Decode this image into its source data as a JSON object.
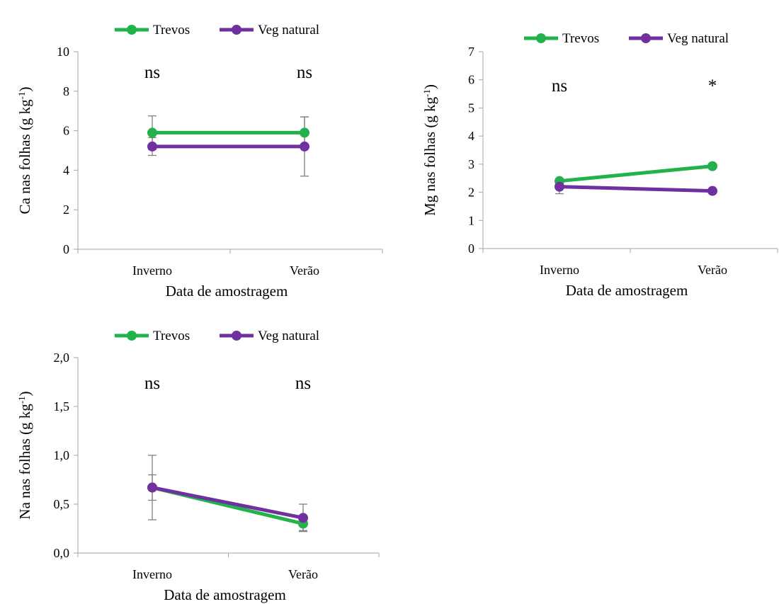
{
  "colors": {
    "trevos": "#21b24b",
    "veg": "#7030a0",
    "error": "#808080",
    "axis": "#a6a6a6"
  },
  "chart_data": [
    {
      "type": "line",
      "categories": [
        "Inverno",
        "Verão"
      ],
      "xlabel": "Data de amostragem",
      "ylabel": "Ca nas folhas (g kg",
      "ylabel_sup": "-1",
      "ylabel_close": ")",
      "ylim": [
        0,
        10
      ],
      "yticks": [
        "0",
        "2",
        "4",
        "6",
        "8",
        "10"
      ],
      "yticks_values": [
        0,
        2,
        4,
        6,
        8,
        10
      ],
      "legend_placement": "top",
      "series": [
        {
          "name": "Trevos",
          "values": [
            5.9,
            5.9
          ],
          "error": [
            0.85,
            0.8
          ]
        },
        {
          "name": "Veg natural",
          "values": [
            5.2,
            5.2
          ],
          "error": [
            0.45,
            1.5
          ]
        }
      ],
      "annotations": [
        "ns",
        "ns"
      ]
    },
    {
      "type": "line",
      "categories": [
        "Inverno",
        "Verão"
      ],
      "xlabel": "Data de amostragem",
      "ylabel": "Mg nas folhas (g kg",
      "ylabel_sup": "-1",
      "ylabel_close": ")",
      "ylim": [
        0,
        7
      ],
      "yticks": [
        "0",
        "1",
        "2",
        "3",
        "4",
        "5",
        "6",
        "7"
      ],
      "yticks_values": [
        0,
        1,
        2,
        3,
        4,
        5,
        6,
        7
      ],
      "legend_placement": "top",
      "series": [
        {
          "name": "Trevos",
          "values": [
            2.4,
            2.93
          ],
          "error": [
            0.05,
            0.05
          ]
        },
        {
          "name": "Veg natural",
          "values": [
            2.2,
            2.05
          ],
          "error": [
            0.25,
            0.05
          ]
        }
      ],
      "annotations": [
        "ns",
        "*"
      ]
    },
    {
      "type": "line",
      "categories": [
        "Inverno",
        "Verão"
      ],
      "xlabel": "Data de amostragem",
      "ylabel": "Na nas folhas (g kg",
      "ylabel_sup": "-1",
      "ylabel_close": ")",
      "ylim": [
        0,
        2
      ],
      "yticks": [
        "0,0",
        "0,5",
        "1,0",
        "1,5",
        "2,0"
      ],
      "yticks_values": [
        0,
        0.5,
        1,
        1.5,
        2
      ],
      "legend_placement": "top",
      "series": [
        {
          "name": "Trevos",
          "values": [
            0.67,
            0.3
          ],
          "error": [
            0.33,
            0.07
          ]
        },
        {
          "name": "Veg natural",
          "values": [
            0.67,
            0.36
          ],
          "error": [
            0.13,
            0.14
          ]
        }
      ],
      "annotations": [
        "ns",
        "ns"
      ]
    }
  ]
}
